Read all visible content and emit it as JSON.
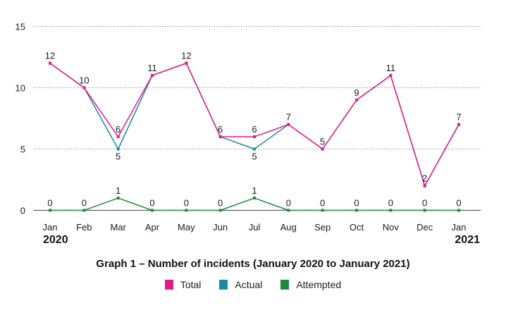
{
  "chart_data": {
    "type": "line",
    "title": "Graph 1 – Number of incidents (January 2020 to January 2021)",
    "categories": [
      "Jan",
      "Feb",
      "Mar",
      "Apr",
      "May",
      "Jun",
      "Jul",
      "Aug",
      "Sep",
      "Oct",
      "Nov",
      "Dec",
      "Jan"
    ],
    "year_labels": {
      "first": "2020",
      "last": "2021"
    },
    "y_ticks": [
      0,
      5,
      10,
      15
    ],
    "ylim": [
      0,
      15
    ],
    "grid": "dotted horizontal",
    "legend_position": "bottom",
    "series": [
      {
        "name": "Total",
        "color": "#e6198a",
        "values": [
          12,
          10,
          6,
          11,
          12,
          6,
          6,
          7,
          5,
          9,
          11,
          2,
          7
        ]
      },
      {
        "name": "Actual",
        "color": "#1a8aa0",
        "values": [
          12,
          10,
          5,
          11,
          12,
          6,
          5,
          7,
          5,
          9,
          11,
          2,
          7
        ]
      },
      {
        "name": "Attempted",
        "color": "#1f8a3c",
        "values": [
          0,
          0,
          1,
          0,
          0,
          0,
          1,
          0,
          0,
          0,
          0,
          0,
          0
        ]
      }
    ]
  }
}
